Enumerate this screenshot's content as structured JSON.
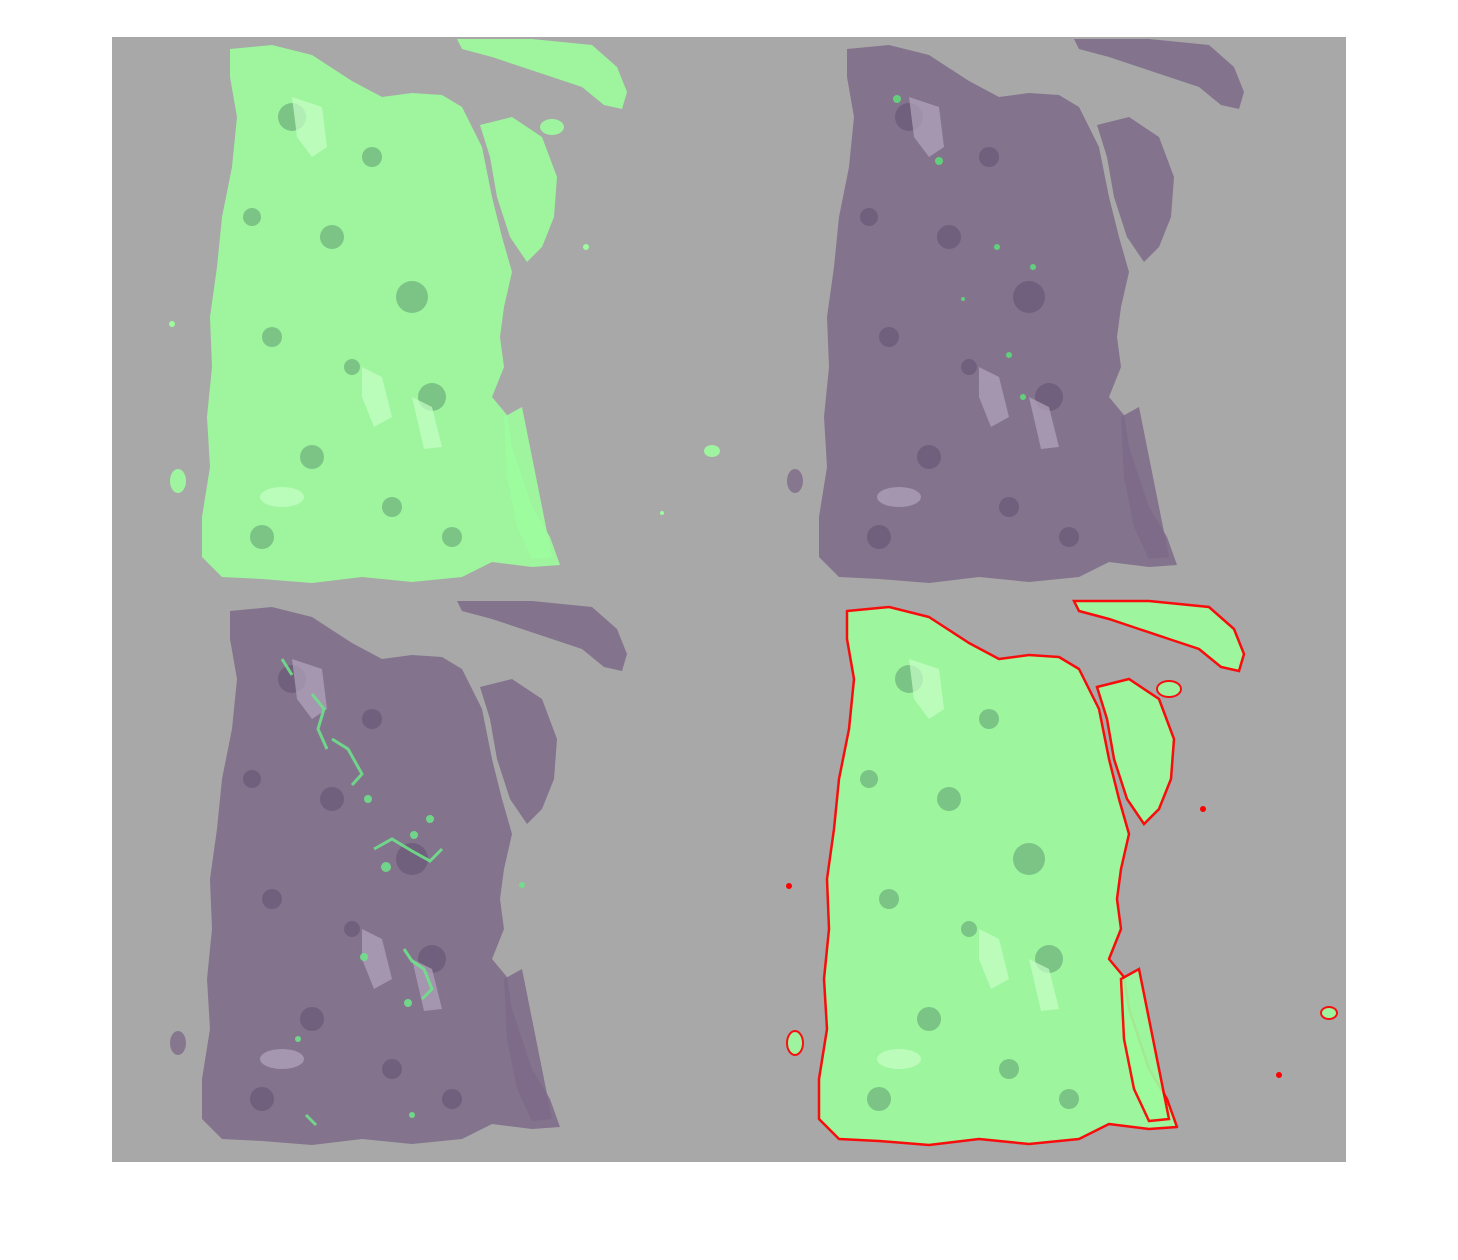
{
  "figure": {
    "background_color": "#a8a8a8",
    "panels": [
      {
        "id": "tissue-mask-overlay",
        "overlay": "full-tissue-green-mask",
        "overlay_color": "#9dfc9d"
      },
      {
        "id": "sparse-detections",
        "overlay": "few-small-green-regions",
        "overlay_color": "#5fd97a"
      },
      {
        "id": "cluster-detections",
        "overlay": "scattered-green-clusters",
        "overlay_color": "#6fe08a"
      },
      {
        "id": "tissue-mask-with-contour",
        "overlay": "green-mask-with-red-outline",
        "overlay_color": "#9dfc9d",
        "contour_color": "#ff0000"
      }
    ],
    "tissue_color": "#7d6a88",
    "tissue_dark_color": "#5a4a6a"
  }
}
